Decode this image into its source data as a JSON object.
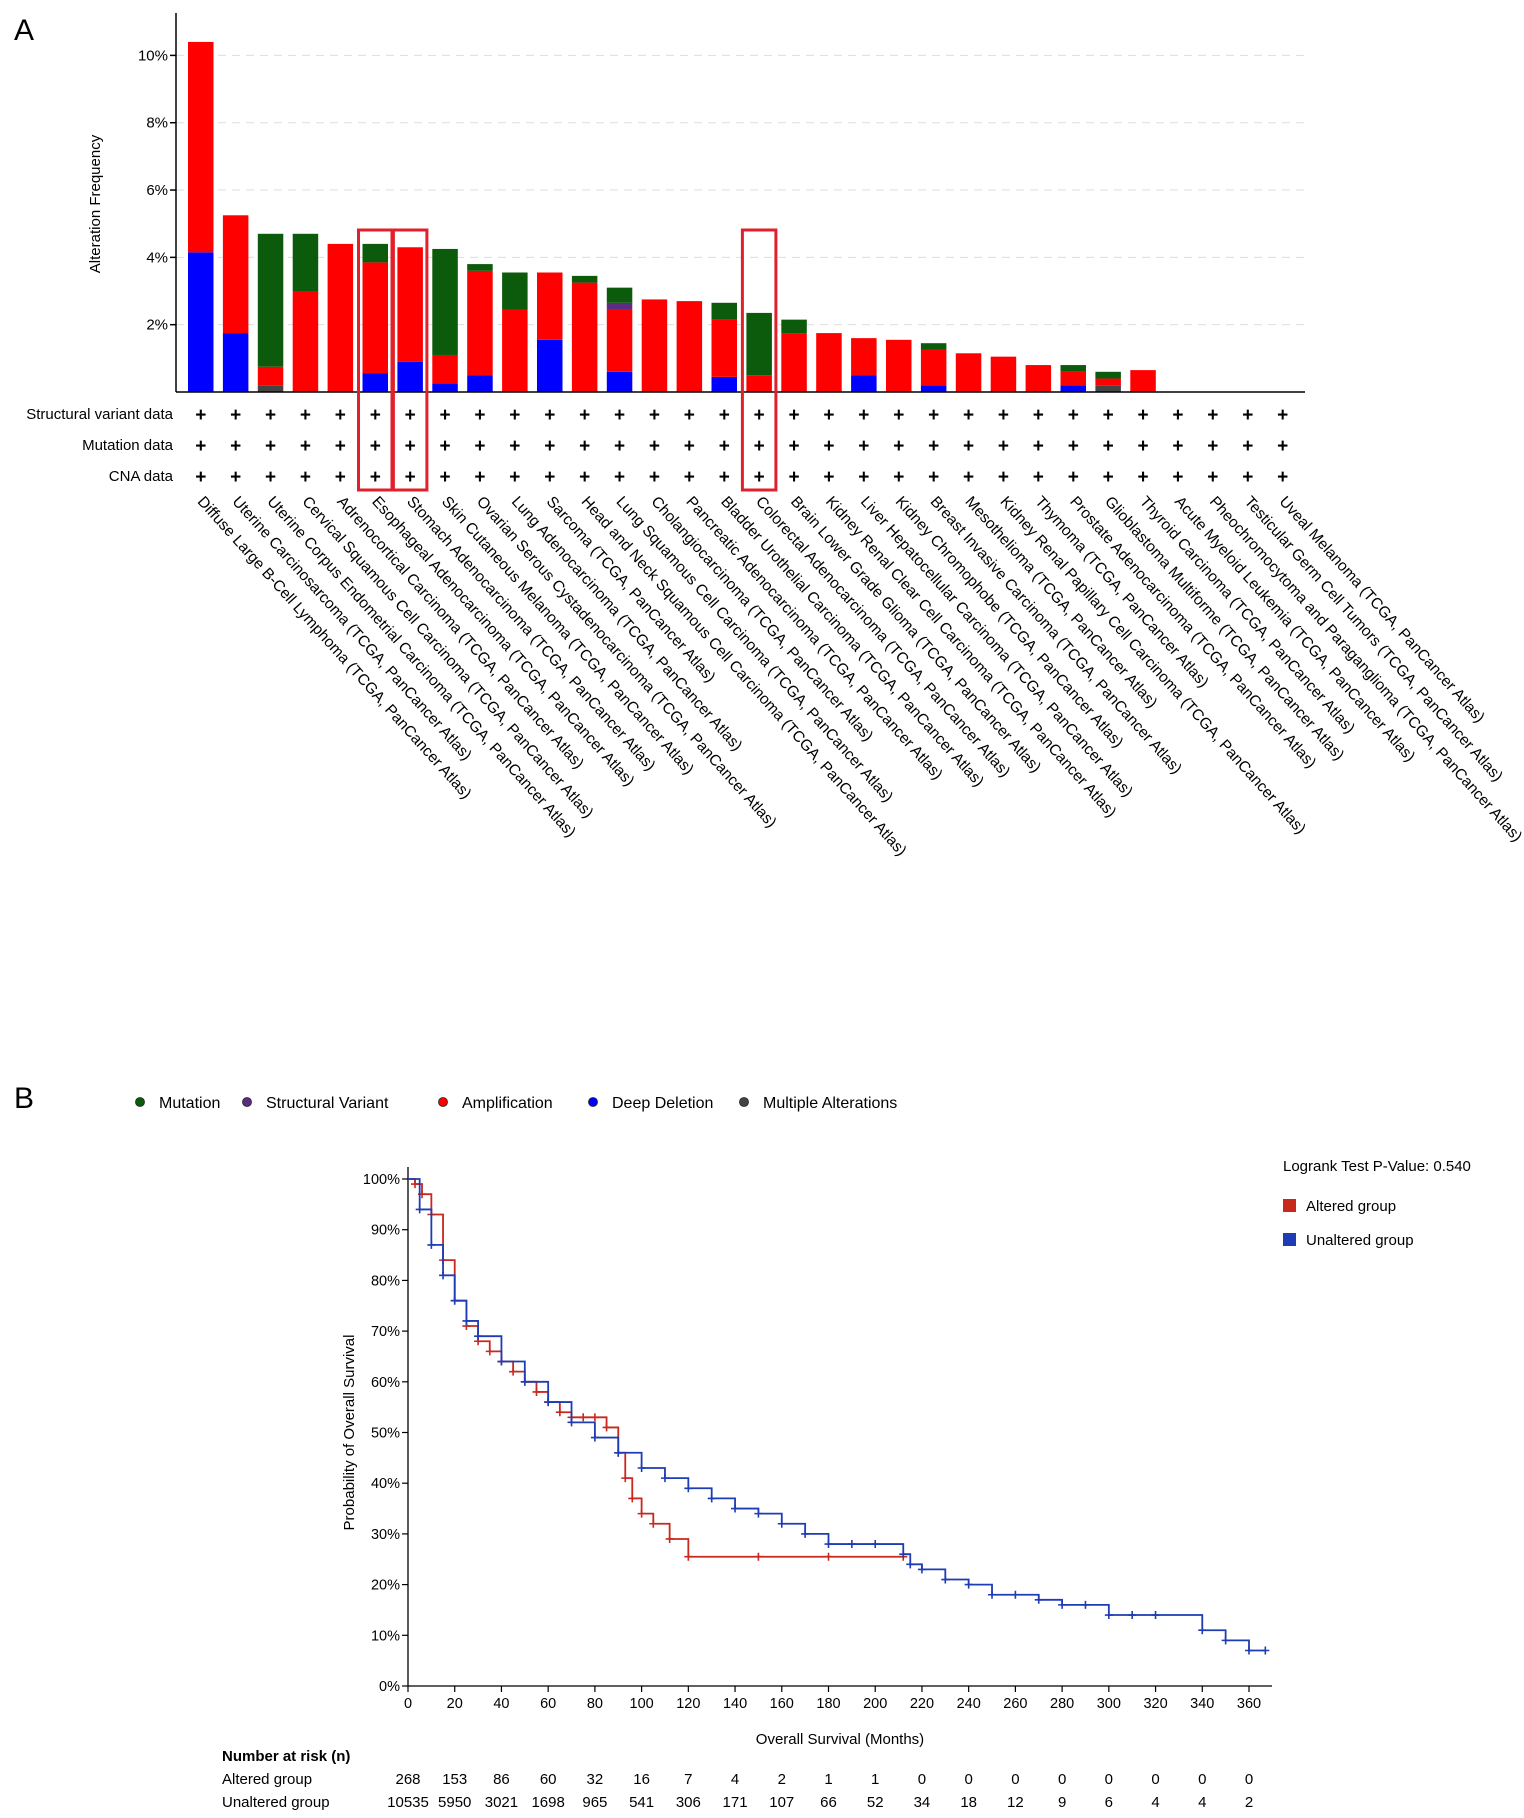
{
  "panels": {
    "a": "A",
    "b": "B"
  },
  "colors": {
    "amplification": "#ff0000",
    "deep_deletion": "#0000ff",
    "mutation": "#0c5a0c",
    "structural_variant": "#5a2d82",
    "multiple": "#444444",
    "altered_km": "#c8281e",
    "unaltered_km": "#1e3cb4",
    "highlight": "#e0202a"
  },
  "chart_data": [
    {
      "type": "bar",
      "stacked": true,
      "ylabel": "Alteration Frequency",
      "ylim": [
        0,
        11.2
      ],
      "yticks": [
        2,
        4,
        6,
        8,
        10
      ],
      "ytick_labels": [
        "2%",
        "4%",
        "6%",
        "8%",
        "10%"
      ],
      "grid": "dashed horizontal",
      "categories": [
        "Diffuse Large B-Cell Lymphoma (TCGA, PanCancer Atlas)",
        "Uterine Carcinosarcoma (TCGA, PanCancer Atlas)",
        "Uterine Corpus Endometrial Carcinoma (TCGA, PanCancer Atlas)",
        "Cervical Squamous Cell Carcinoma (TCGA, PanCancer Atlas)",
        "Adrenocortical Carcinoma (TCGA, PanCancer Atlas)",
        "Esophageal Adenocarcinoma (TCGA, PanCancer Atlas)",
        "Stomach Adenocarcinoma (TCGA, PanCancer Atlas)",
        "Skin Cutaneous Melanoma (TCGA, PanCancer Atlas)",
        "Ovarian Serous Cystadenocarcinoma (TCGA, PanCancer Atlas)",
        "Lung Adenocarcinoma (TCGA, PanCancer Atlas)",
        "Sarcoma (TCGA, PanCancer Atlas)",
        "Head and Neck Squamous Cell Carcinoma (TCGA, PanCancer Atlas)",
        "Lung Squamous Cell Carcinoma (TCGA, PanCancer Atlas)",
        "Cholangiocarcinoma (TCGA, PanCancer Atlas)",
        "Pancreatic Adenocarcinoma (TCGA, PanCancer Atlas)",
        "Bladder Urothelial Carcinoma (TCGA, PanCancer Atlas)",
        "Colorectal Adenocarcinoma (TCGA, PanCancer Atlas)",
        "Brain Lower Grade Glioma (TCGA, PanCancer Atlas)",
        "Kidney Renal Clear Cell Carcinoma (TCGA, PanCancer Atlas)",
        "Liver Hepatocellular Carcinoma (TCGA, PanCancer Atlas)",
        "Kidney Chromophobe (TCGA, PanCancer Atlas)",
        "Breast Invasive Carcinoma (TCGA, PanCancer Atlas)",
        "Mesothelioma (TCGA, PanCancer Atlas)",
        "Kidney Renal Papillary Cell Carcinoma (TCGA, PanCancer Atlas)",
        "Thymoma (TCGA, PanCancer Atlas)",
        "Prostate Adenocarcinoma (TCGA, PanCancer Atlas)",
        "Glioblastoma Multiforme (TCGA, PanCancer Atlas)",
        "Thyroid Carcinoma (TCGA, PanCancer Atlas)",
        "Acute Myeloid Leukemia (TCGA, PanCancer Atlas)",
        "Pheochromocytoma and Paraganglioma (TCGA, PanCancer Atlas)",
        "Testicular Germ Cell Tumors (TCGA, PanCancer Atlas)",
        "Uveal Melanoma (TCGA, PanCancer Atlas)"
      ],
      "series": [
        {
          "key": "deep_deletion",
          "values": [
            4.15,
            1.75,
            0,
            0,
            0,
            0.55,
            0.9,
            0.25,
            0.5,
            0,
            1.55,
            0,
            0.6,
            0,
            0,
            0.45,
            0,
            0,
            0,
            0.5,
            0,
            0.2,
            0,
            0,
            0,
            0.2,
            0,
            0,
            0,
            0,
            0,
            0
          ]
        },
        {
          "key": "multiple",
          "values": [
            0,
            0,
            0.2,
            0,
            0,
            0,
            0,
            0,
            0,
            0,
            0,
            0,
            0,
            0,
            0,
            0,
            0,
            0,
            0,
            0,
            0,
            0,
            0,
            0,
            0,
            0,
            0.2,
            0,
            0,
            0,
            0,
            0
          ]
        },
        {
          "key": "amplification",
          "values": [
            6.25,
            3.5,
            0.55,
            3.0,
            4.4,
            3.3,
            3.4,
            0.85,
            3.1,
            2.45,
            2.0,
            3.25,
            1.85,
            2.75,
            2.7,
            1.7,
            0.5,
            1.75,
            1.75,
            1.1,
            1.55,
            1.05,
            1.15,
            1.05,
            0.8,
            0.4,
            0.2,
            0.65,
            0,
            0,
            0,
            0
          ]
        },
        {
          "key": "structural_variant",
          "values": [
            0,
            0,
            0,
            0,
            0,
            0,
            0,
            0,
            0,
            0,
            0,
            0,
            0.2,
            0,
            0,
            0,
            0,
            0,
            0,
            0,
            0,
            0,
            0,
            0,
            0,
            0,
            0,
            0,
            0,
            0,
            0,
            0
          ]
        },
        {
          "key": "mutation",
          "values": [
            0,
            0,
            3.95,
            1.7,
            0,
            0.55,
            0,
            3.15,
            0.2,
            1.1,
            0,
            0.2,
            0.45,
            0,
            0,
            0.5,
            1.85,
            0.4,
            0,
            0,
            0,
            0.2,
            0,
            0,
            0,
            0.2,
            0.2,
            0,
            0,
            0,
            0,
            0
          ]
        }
      ],
      "profile_rows": [
        "Structural variant data",
        "Mutation data",
        "CNA data"
      ],
      "profile_symbol": "+",
      "highlighted_categories": [
        5,
        6,
        16
      ]
    },
    {
      "type": "line",
      "subtype": "kaplan-meier",
      "xlabel": "Overall Survival (Months)",
      "ylabel": "Probability of Overall Survival",
      "xlim": [
        0,
        370
      ],
      "xticks": [
        0,
        20,
        40,
        60,
        80,
        100,
        120,
        140,
        160,
        180,
        200,
        220,
        240,
        260,
        280,
        300,
        320,
        340,
        360
      ],
      "ylim": [
        0,
        100
      ],
      "yticks": [
        0,
        10,
        20,
        30,
        40,
        50,
        60,
        70,
        80,
        90,
        100
      ],
      "ytick_labels": [
        "0%",
        "10%",
        "20%",
        "30%",
        "40%",
        "50%",
        "60%",
        "70%",
        "80%",
        "90%",
        "100%"
      ],
      "legend_title": "Logrank Test P-Value: 0.540",
      "series": [
        {
          "name": "Altered group",
          "x": [
            0,
            3,
            6,
            10,
            15,
            20,
            25,
            30,
            35,
            40,
            45,
            50,
            55,
            60,
            65,
            70,
            75,
            80,
            85,
            90,
            93,
            96,
            100,
            105,
            112,
            120,
            150,
            180,
            212
          ],
          "y": [
            100,
            99,
            97,
            93,
            84,
            76,
            71,
            68,
            66,
            64,
            62,
            60,
            58,
            56,
            54,
            53,
            53,
            53,
            51,
            46,
            41,
            37,
            34,
            32,
            29,
            25.5,
            25.5,
            25.5,
            25.5
          ]
        },
        {
          "name": "Unaltered group",
          "x": [
            0,
            5,
            10,
            15,
            20,
            25,
            30,
            40,
            50,
            60,
            70,
            80,
            90,
            100,
            110,
            120,
            130,
            140,
            150,
            160,
            170,
            180,
            190,
            200,
            212,
            215,
            220,
            230,
            240,
            250,
            260,
            270,
            280,
            290,
            300,
            310,
            320,
            340,
            350,
            360,
            367
          ],
          "y": [
            100,
            94,
            87,
            81,
            76,
            72,
            69,
            64,
            60,
            56,
            52,
            49,
            46,
            43,
            41,
            39,
            37,
            35,
            34,
            32,
            30,
            28,
            28,
            28,
            26,
            24,
            23,
            21,
            20,
            18,
            18,
            17,
            16,
            16,
            14,
            14,
            14,
            11,
            9,
            7,
            7
          ]
        }
      ],
      "number_at_risk": {
        "title": "Number at risk (n)",
        "rows": [
          {
            "label": "Altered group",
            "values": [
              "268",
              "153",
              "86",
              "60",
              "32",
              "16",
              "7",
              "4",
              "2",
              "1",
              "1",
              "0",
              "0",
              "0",
              "0",
              "0",
              "0",
              "0",
              "0"
            ]
          },
          {
            "label": "Unaltered group",
            "values": [
              "10535",
              "5950",
              "3021",
              "1698",
              "965",
              "541",
              "306",
              "171",
              "107",
              "66",
              "52",
              "34",
              "18",
              "12",
              "9",
              "6",
              "4",
              "4",
              "2"
            ]
          }
        ]
      }
    }
  ],
  "legend": [
    {
      "label": "Mutation",
      "color": "#0c5a0c"
    },
    {
      "label": "Structural Variant",
      "color": "#5a2d82"
    },
    {
      "label": "Amplification",
      "color": "#ff0000"
    },
    {
      "label": "Deep Deletion",
      "color": "#0000ff"
    },
    {
      "label": "Multiple Alterations",
      "color": "#444444"
    }
  ]
}
